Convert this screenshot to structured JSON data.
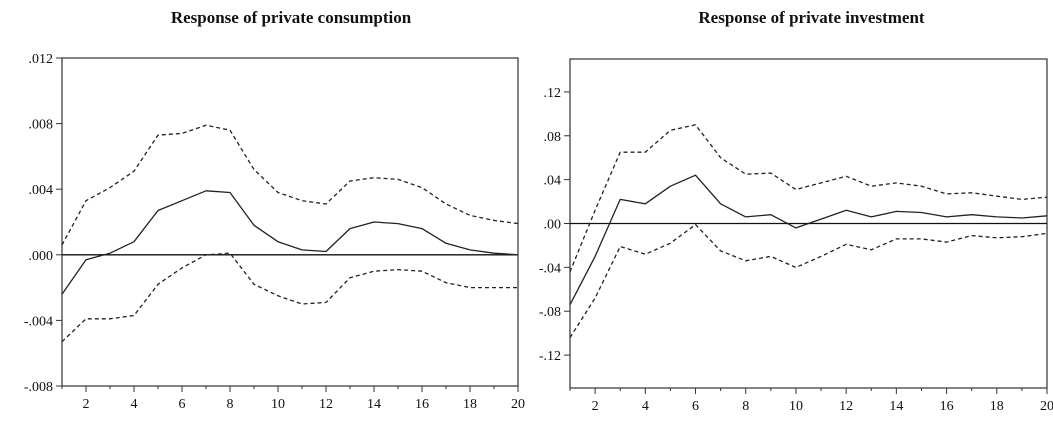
{
  "chart_data": [
    {
      "type": "line",
      "title": "Response of private consumption",
      "xlabel": "",
      "ylabel": "",
      "x": [
        1,
        2,
        3,
        4,
        5,
        6,
        7,
        8,
        9,
        10,
        11,
        12,
        13,
        14,
        15,
        16,
        17,
        18,
        19,
        20
      ],
      "xticks": [
        2,
        4,
        6,
        8,
        10,
        12,
        14,
        16,
        18,
        20
      ],
      "xlim": [
        1,
        20
      ],
      "ylim": [
        -0.008,
        0.012
      ],
      "yticks": [
        -0.008,
        -0.004,
        0.0,
        0.004,
        0.008,
        0.012
      ],
      "ytick_labels": [
        "-.008",
        "-.004",
        ".000",
        ".004",
        ".008",
        ".012"
      ],
      "zero_line": true,
      "legend": "none",
      "series": [
        {
          "style": "solid",
          "values": [
            -0.0024,
            -0.0003,
            0.0001,
            0.0008,
            0.0027,
            0.0033,
            0.0039,
            0.0038,
            0.0018,
            0.0008,
            0.0003,
            0.0002,
            0.0016,
            0.002,
            0.0019,
            0.0016,
            0.0007,
            0.0003,
            0.0001,
            0.0
          ]
        },
        {
          "style": "dashed",
          "values": [
            0.0006,
            0.0033,
            0.0041,
            0.0051,
            0.0073,
            0.0074,
            0.0079,
            0.0076,
            0.0052,
            0.0038,
            0.0033,
            0.0031,
            0.0045,
            0.0047,
            0.0046,
            0.0041,
            0.0031,
            0.0024,
            0.0021,
            0.0019
          ]
        },
        {
          "style": "dashed",
          "values": [
            -0.0053,
            -0.0039,
            -0.0039,
            -0.0037,
            -0.0018,
            -0.0008,
            0.0,
            0.0001,
            -0.0018,
            -0.0025,
            -0.003,
            -0.0029,
            -0.0014,
            -0.001,
            -0.0009,
            -0.001,
            -0.0017,
            -0.002,
            -0.002,
            -0.002
          ]
        }
      ]
    },
    {
      "type": "line",
      "title": "Response of private investment",
      "xlabel": "",
      "ylabel": "",
      "x": [
        1,
        2,
        3,
        4,
        5,
        6,
        7,
        8,
        9,
        10,
        11,
        12,
        13,
        14,
        15,
        16,
        17,
        18,
        19,
        20
      ],
      "xticks": [
        2,
        4,
        6,
        8,
        10,
        12,
        14,
        16,
        18,
        20
      ],
      "xlim": [
        1,
        20
      ],
      "ylim": [
        -0.15,
        0.15
      ],
      "yticks": [
        -0.12,
        -0.08,
        -0.04,
        0.0,
        0.04,
        0.08,
        0.12
      ],
      "ytick_labels": [
        "-.12",
        "-.08",
        "-.04",
        ".00",
        ".04",
        ".08",
        ".12"
      ],
      "zero_line": true,
      "legend": "none",
      "series": [
        {
          "style": "solid",
          "values": [
            -0.074,
            -0.03,
            0.022,
            0.018,
            0.034,
            0.044,
            0.018,
            0.006,
            0.008,
            -0.004,
            0.004,
            0.012,
            0.006,
            0.011,
            0.01,
            0.006,
            0.008,
            0.006,
            0.005,
            0.007
          ]
        },
        {
          "style": "dashed",
          "values": [
            -0.044,
            0.012,
            0.065,
            0.065,
            0.085,
            0.09,
            0.06,
            0.045,
            0.046,
            0.031,
            0.037,
            0.043,
            0.034,
            0.037,
            0.034,
            0.027,
            0.028,
            0.025,
            0.022,
            0.024
          ]
        },
        {
          "style": "dashed",
          "values": [
            -0.104,
            -0.068,
            -0.021,
            -0.028,
            -0.018,
            -0.001,
            -0.025,
            -0.034,
            -0.03,
            -0.04,
            -0.03,
            -0.019,
            -0.024,
            -0.014,
            -0.014,
            -0.017,
            -0.011,
            -0.013,
            -0.012,
            -0.009
          ]
        }
      ]
    }
  ]
}
